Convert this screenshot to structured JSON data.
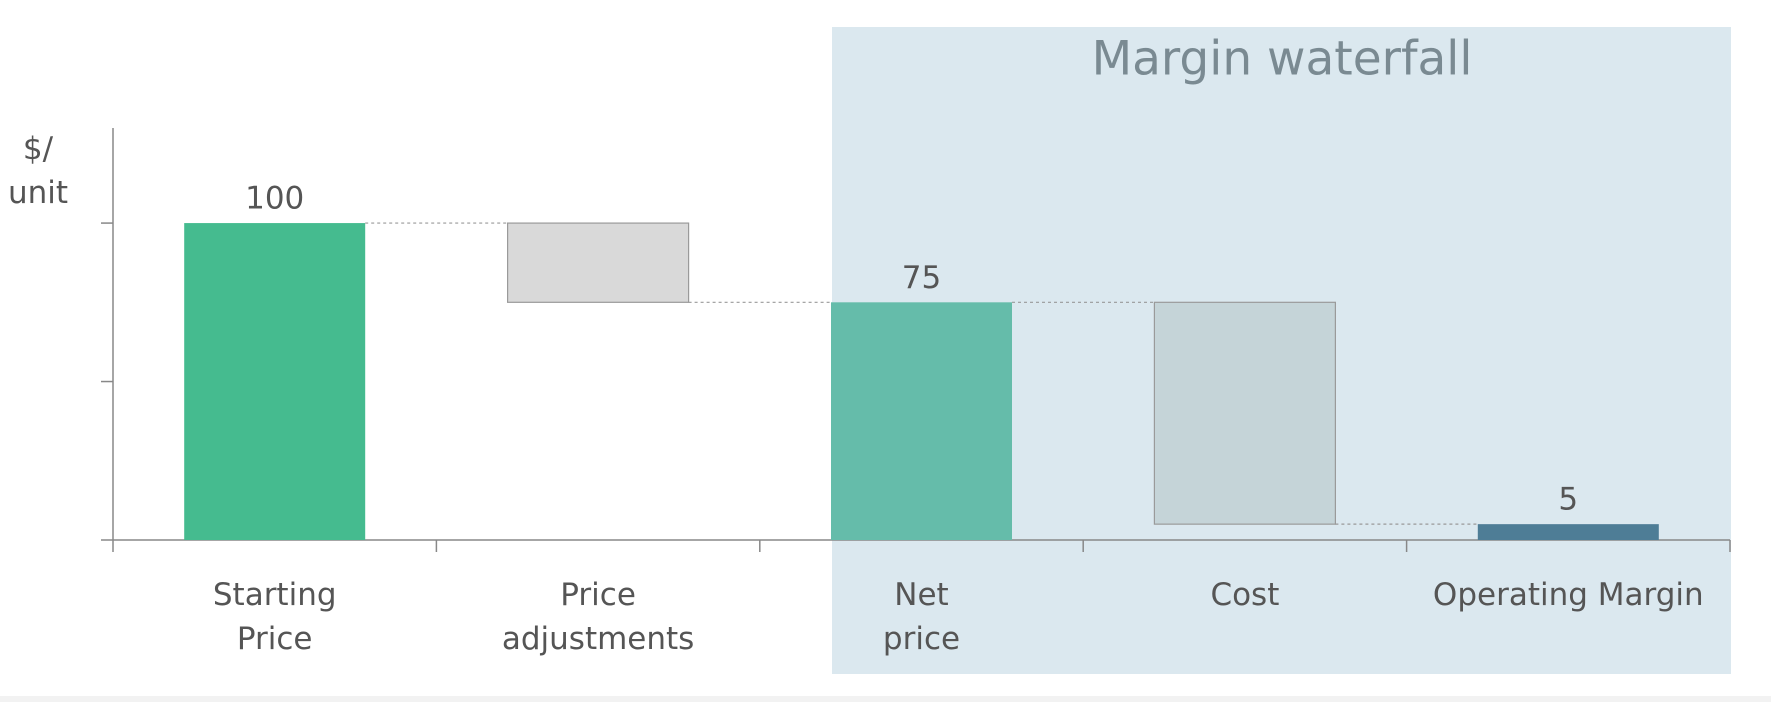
{
  "chart_data": {
    "type": "waterfall",
    "title": "Margin waterfall",
    "ylabel": [
      "$/",
      "unit"
    ],
    "categories": [
      "Starting\nPrice",
      "Price\nadjustments",
      "Net\nprice",
      "Cost",
      "Operating Margin"
    ],
    "values": [
      100,
      -25,
      75,
      -70,
      5
    ],
    "measure": [
      "total",
      "relative",
      "total",
      "relative",
      "total"
    ],
    "colors": [
      "#45bb8f",
      "#d9d9d9",
      "#65bcaa",
      "#c5d4d8",
      "#4e7d96"
    ],
    "ylim": [
      0,
      130
    ],
    "yticks": [
      0,
      50,
      100
    ]
  }
}
